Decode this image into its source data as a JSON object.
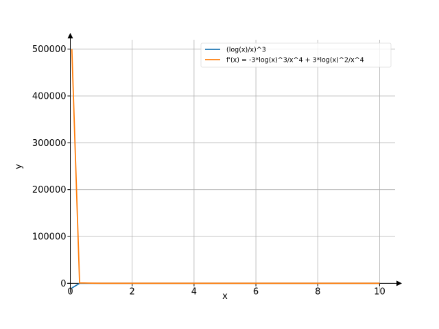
{
  "chart_data": {
    "type": "line",
    "title": "",
    "xlabel": "x",
    "ylabel": "y",
    "xlim": [
      -0.1,
      10.5
    ],
    "ylim": [
      -20000,
      520000
    ],
    "x_ticks": [
      0,
      2,
      4,
      6,
      8,
      10
    ],
    "y_ticks": [
      0,
      100000,
      200000,
      300000,
      400000,
      500000
    ],
    "x_tick_labels": [
      "0",
      "2",
      "4",
      "6",
      "8",
      "10"
    ],
    "y_tick_labels": [
      "0",
      "100000",
      "200000",
      "300000",
      "400000",
      "500000"
    ],
    "grid": true,
    "legend_position": "top-right",
    "series": [
      {
        "name": "(log(x)/x)^3",
        "color": "#1f77b4",
        "x": [
          0.05,
          0.3,
          1,
          2,
          4,
          6,
          8,
          10
        ],
        "y": [
          -10000,
          -25,
          0,
          0.04,
          0.04,
          0.03,
          0.02,
          0.01
        ]
      },
      {
        "name": "f'(x) = -3*log(x)^3/x^4 + 3*log(x)^2/x^4",
        "color": "#ff7f0e",
        "x": [
          0.05,
          0.3,
          1,
          2,
          4,
          6,
          8,
          10
        ],
        "y": [
          500000,
          800,
          0,
          0.04,
          0.01,
          0.001,
          0.0004,
          0.0002
        ]
      }
    ]
  }
}
